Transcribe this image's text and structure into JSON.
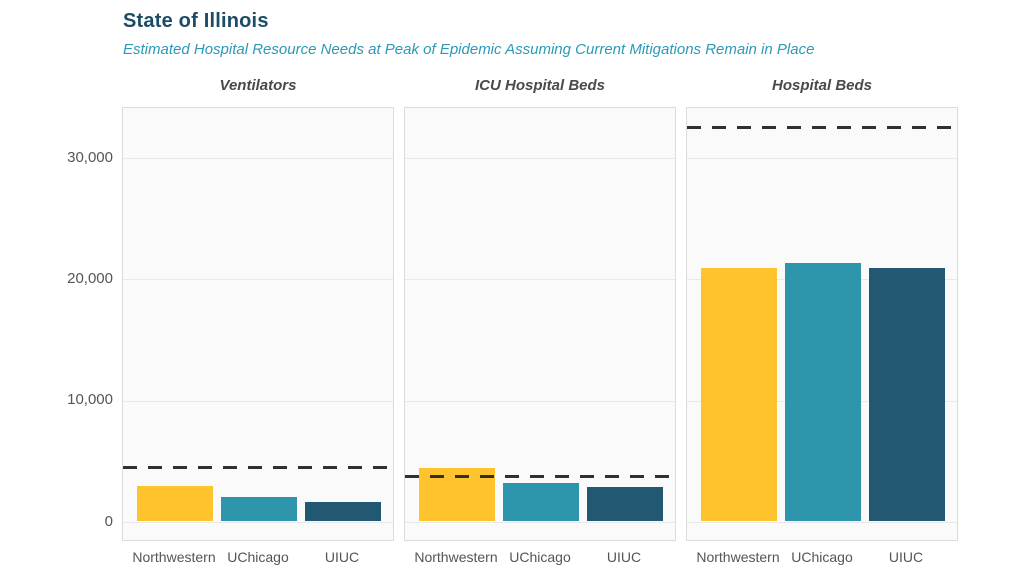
{
  "chart_data": {
    "type": "bar",
    "title": "State of Illinois",
    "subtitle": "Estimated Hospital Resource Needs at Peak of Epidemic Assuming Current Mitigations Remain in Place",
    "categories": [
      "Northwestern",
      "UChicago",
      "UIUC"
    ],
    "panels": [
      {
        "title": "Ventilators",
        "values": [
          2850,
          1950,
          1550
        ],
        "capacity_line": 4550
      },
      {
        "title": "ICU Hospital Beds",
        "values": [
          4400,
          3150,
          2800
        ],
        "capacity_line": 3800
      },
      {
        "title": "Hospital Beds",
        "values": [
          20900,
          21250,
          20900
        ],
        "capacity_line": 32600
      }
    ],
    "yticks": [
      0,
      10000,
      20000,
      30000
    ],
    "ytick_labels": [
      "0",
      "10,000",
      "20,000",
      "30,000"
    ],
    "ylim": [
      -1650,
      34150
    ],
    "grid": true,
    "legend": "none",
    "bar_colors": [
      "#FEC32D",
      "#2D95AC",
      "#235873"
    ],
    "capacity_line_color": "#303030",
    "capacity_line_style": "dashed"
  },
  "colors": {
    "title_text": "#1B4D66",
    "subtitle_text": "#2B99B7",
    "panel_title_text": "#4A4A4A",
    "axis_text": "#555555",
    "panel_bg": "#FAFAFA",
    "panel_border": "#DCDCDC",
    "gridline": "#E9E9E9",
    "page_bg": "#FFFFFF"
  }
}
